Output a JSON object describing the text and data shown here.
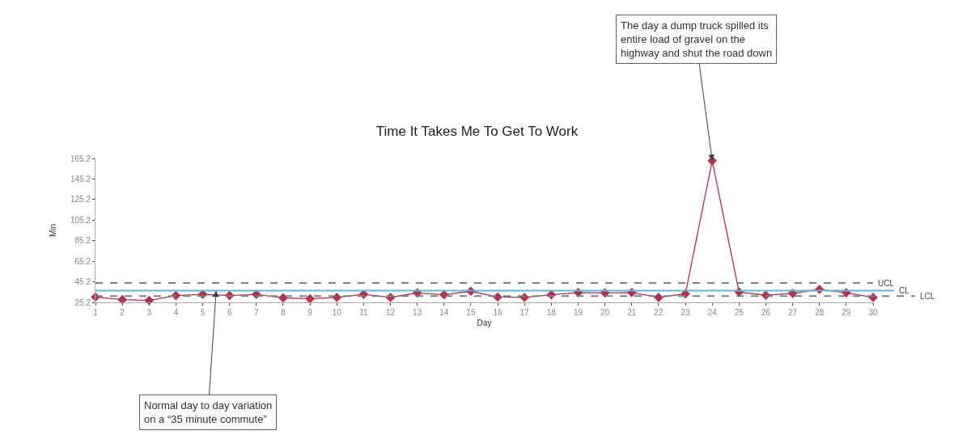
{
  "chart_data": {
    "type": "line",
    "title": "Time It Takes Me To Get To Work",
    "xlabel": "Day",
    "ylabel": "Min",
    "x": [
      1,
      2,
      3,
      4,
      5,
      6,
      7,
      8,
      9,
      10,
      11,
      12,
      13,
      14,
      15,
      16,
      17,
      18,
      19,
      20,
      21,
      22,
      23,
      24,
      25,
      26,
      27,
      28,
      29,
      30
    ],
    "series": [
      {
        "color": "#b3304f",
        "values": [
          30.4,
          27.8,
          27,
          31.8,
          33,
          31.8,
          33,
          29.6,
          28.7,
          30,
          33,
          30,
          34.4,
          32.6,
          36,
          30.4,
          30,
          32.6,
          34.8,
          34.4,
          34.8,
          30,
          33.5,
          163,
          35.3,
          32.1,
          34,
          37.8,
          34.6,
          30
        ]
      }
    ],
    "marker": "diamond",
    "line_style": "solid",
    "xlim": [
      1,
      30
    ],
    "xticks": [
      1,
      2,
      3,
      4,
      5,
      6,
      7,
      8,
      9,
      10,
      11,
      12,
      13,
      14,
      15,
      16,
      17,
      18,
      19,
      20,
      21,
      22,
      23,
      24,
      25,
      26,
      27,
      28,
      29,
      30
    ],
    "ylim": [
      25.2,
      165.2
    ],
    "yticks": [
      25.2,
      45.2,
      65.2,
      85.2,
      105.2,
      125.2,
      145.2,
      165.2
    ],
    "grid": false,
    "ref_lines": [
      {
        "axis": "y",
        "value": 44,
        "label": "UCL",
        "color": "#808080",
        "line_style": "dashed"
      },
      {
        "axis": "y",
        "value": 36.6,
        "label": "CL",
        "color": "#5bb8e0",
        "line_style": "solid"
      },
      {
        "axis": "y",
        "value": 31.3,
        "label": "LCL",
        "color": "#808080",
        "line_style": "dashed"
      }
    ],
    "annotations": [
      {
        "text": "The day a dump truck spilled its\nentire load of gravel on the\nhighway and shut the road down",
        "x": 24,
        "y": 163
      },
      {
        "text": "Normal day to day variation\non a “35 minute commute”",
        "x": 5.5,
        "y": 36.6
      }
    ]
  }
}
